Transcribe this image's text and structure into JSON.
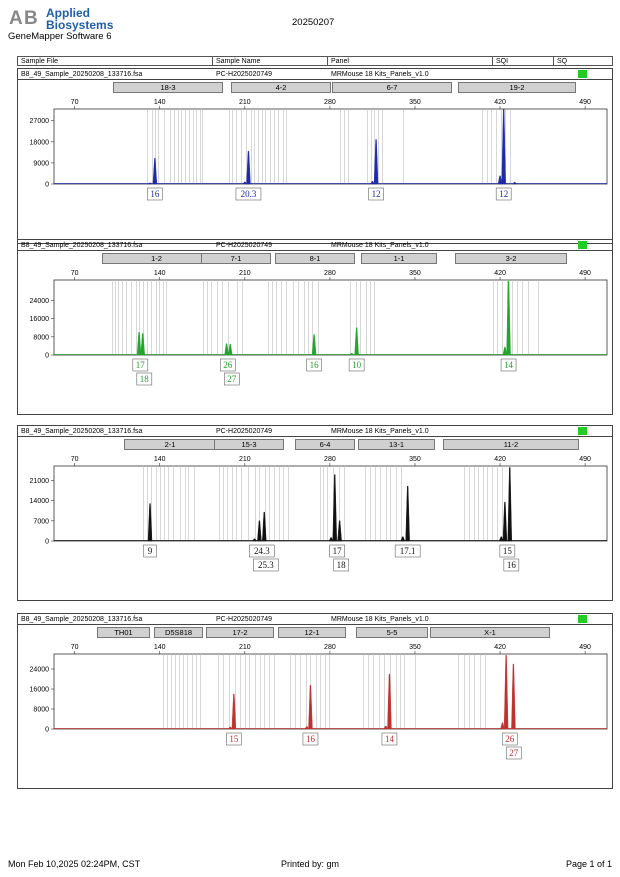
{
  "header": {
    "brand_line1": "Applied",
    "brand_line2": "Biosystems",
    "software": "GeneMapper Software 6",
    "date": "20250207"
  },
  "columns": [
    "Sample File",
    "Sample Name",
    "Panel",
    "SQI",
    "SQ"
  ],
  "footer": {
    "printed_on": "Mon Feb 10,2025 02:24PM, CST",
    "printed_by": "Printed by: gm",
    "page": "Page 1 of 1"
  },
  "colors": {
    "blue": "#1f2aa8",
    "green": "#22a52b",
    "black": "#111111",
    "red": "#c0302f",
    "sq_ok": "#22cc22"
  },
  "chart_data": [
    {
      "type": "line",
      "sample_file": "B8_49_Sample_20250208_133716.fsa",
      "sample_name": "PC-H2025020749",
      "panel": "MRMouse 18 Kits_Panels_v1.0",
      "color": "#1f2aa8",
      "x_ticks": [
        70,
        140,
        210,
        280,
        350,
        420,
        490
      ],
      "y_ticks": [
        0,
        9000,
        18000,
        27000
      ],
      "xlim": [
        53,
        508
      ],
      "ylim": [
        0,
        32000
      ],
      "loci": [
        "18-3",
        "4-2",
        "6-7",
        "19-2"
      ],
      "peaks": [
        [
          136,
          11000
        ],
        [
          132,
          500
        ],
        [
          213,
          14000
        ],
        [
          210,
          900
        ],
        [
          318,
          19000
        ],
        [
          315,
          1200
        ],
        [
          423,
          32000
        ],
        [
          420,
          3500
        ],
        [
          432,
          800
        ]
      ],
      "alleles": [
        {
          "x": 136,
          "labels": [
            "16"
          ]
        },
        {
          "x": 213,
          "labels": [
            "20.3"
          ]
        },
        {
          "x": 318,
          "labels": [
            "12"
          ]
        },
        {
          "x": 423,
          "labels": [
            "12"
          ]
        }
      ]
    },
    {
      "type": "line",
      "sample_file": "B8_49_Sample_20250208_133716.fsa",
      "sample_name": "PC-H2025020749",
      "panel": "MRMouse 18 Kits_Panels_v1.0",
      "color": "#22a52b",
      "x_ticks": [
        70,
        140,
        210,
        280,
        350,
        420,
        490
      ],
      "y_ticks": [
        0,
        8000,
        16000,
        24000
      ],
      "xlim": [
        53,
        508
      ],
      "ylim": [
        0,
        33000
      ],
      "loci": [
        "1-2",
        "7-1",
        "8-1",
        "1-1",
        "3-2"
      ],
      "peaks": [
        [
          123,
          10000
        ],
        [
          126,
          9500
        ],
        [
          195,
          5000
        ],
        [
          198,
          4800
        ],
        [
          267,
          9000
        ],
        [
          302,
          12000
        ],
        [
          298,
          800
        ],
        [
          427,
          32500
        ],
        [
          424,
          3500
        ]
      ],
      "alleles": [
        {
          "x": 124,
          "labels": [
            "17",
            "18"
          ]
        },
        {
          "x": 196,
          "labels": [
            "26",
            "27"
          ]
        },
        {
          "x": 267,
          "labels": [
            "16"
          ]
        },
        {
          "x": 302,
          "labels": [
            "10"
          ]
        },
        {
          "x": 427,
          "labels": [
            "14"
          ]
        }
      ]
    },
    {
      "type": "line",
      "sample_file": "B8_49_Sample_20250208_133716.fsa",
      "sample_name": "PC-H2025020749",
      "panel": "MRMouse 18 Kits_Panels_v1.0",
      "color": "#111111",
      "x_ticks": [
        70,
        140,
        210,
        280,
        350,
        420,
        490
      ],
      "y_ticks": [
        0,
        7000,
        14000,
        21000
      ],
      "xlim": [
        53,
        508
      ],
      "ylim": [
        0,
        26000
      ],
      "loci": [
        "2-1",
        "15-3",
        "6-4",
        "13-1",
        "11-2"
      ],
      "peaks": [
        [
          132,
          13000
        ],
        [
          222,
          7000
        ],
        [
          226,
          10000
        ],
        [
          218,
          800
        ],
        [
          284,
          23000
        ],
        [
          288,
          7000
        ],
        [
          281,
          1200
        ],
        [
          344,
          19000
        ],
        [
          340,
          1500
        ],
        [
          424,
          13500
        ],
        [
          428,
          25500
        ],
        [
          421,
          1500
        ]
      ],
      "alleles": [
        {
          "x": 132,
          "labels": [
            "9"
          ]
        },
        {
          "x": 224,
          "labels": [
            "24.3",
            "25.3"
          ]
        },
        {
          "x": 286,
          "labels": [
            "17",
            "18"
          ]
        },
        {
          "x": 344,
          "labels": [
            "17.1"
          ]
        },
        {
          "x": 426,
          "labels": [
            "15",
            "16"
          ]
        }
      ]
    },
    {
      "type": "line",
      "sample_file": "B8_49_Sample_20250208_133716.fsa",
      "sample_name": "PC-H2025020749",
      "panel": "MRMouse 18 Kits_Panels_v1.0",
      "color": "#c0302f",
      "x_ticks": [
        70,
        140,
        210,
        280,
        350,
        420,
        490
      ],
      "y_ticks": [
        0,
        8000,
        16000,
        24000
      ],
      "xlim": [
        53,
        508
      ],
      "ylim": [
        0,
        30000
      ],
      "loci": [
        "TH01",
        "D5S818",
        "17-2",
        "12-1",
        "5-5",
        "X-1"
      ],
      "peaks": [
        [
          201,
          14000
        ],
        [
          198,
          800
        ],
        [
          264,
          17500
        ],
        [
          261,
          1000
        ],
        [
          329,
          22000
        ],
        [
          326,
          1200
        ],
        [
          425,
          29500
        ],
        [
          431,
          26000
        ],
        [
          422,
          2500
        ]
      ],
      "alleles": [
        {
          "x": 201,
          "labels": [
            "15"
          ]
        },
        {
          "x": 264,
          "labels": [
            "16"
          ]
        },
        {
          "x": 329,
          "labels": [
            "14"
          ]
        },
        {
          "x": 428,
          "labels": [
            "26",
            "27"
          ]
        }
      ]
    }
  ]
}
